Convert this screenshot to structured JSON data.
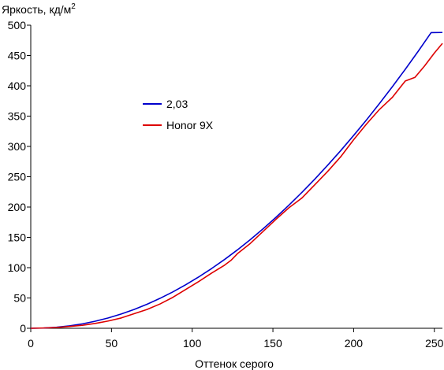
{
  "chart_data": {
    "type": "line",
    "ylabel": "Яркость, кд/м",
    "ylabel_sup": "2",
    "xlabel": "Оттенок серого",
    "xlim": [
      0,
      255
    ],
    "ylim": [
      0,
      500
    ],
    "xticks": [
      0,
      50,
      100,
      150,
      200,
      250
    ],
    "yticks": [
      0,
      50,
      100,
      150,
      200,
      250,
      300,
      350,
      400,
      450,
      500
    ],
    "grid": false,
    "legend_position": "center-left",
    "series": [
      {
        "name": "2,03",
        "color": "#0000cc",
        "x": [
          0,
          8,
          16,
          24,
          32,
          40,
          48,
          56,
          64,
          72,
          80,
          88,
          96,
          104,
          112,
          120,
          128,
          136,
          144,
          152,
          160,
          168,
          176,
          184,
          192,
          200,
          208,
          216,
          224,
          232,
          240,
          248,
          255
        ],
        "y": [
          0,
          0.4,
          1.7,
          4,
          7.3,
          11.7,
          17,
          23.5,
          31,
          39.6,
          49.3,
          60,
          71.8,
          84.6,
          98.5,
          113.4,
          129.3,
          146.3,
          164.3,
          183.3,
          203.3,
          224.3,
          246.2,
          269.2,
          293.1,
          318.1,
          343.9,
          370.8,
          398.6,
          427.3,
          457,
          487.7,
          488
        ]
      },
      {
        "name": "Honor 9X",
        "color": "#dd0000",
        "x": [
          0,
          8,
          16,
          24,
          32,
          40,
          48,
          56,
          64,
          72,
          80,
          88,
          96,
          104,
          112,
          120,
          124,
          128,
          136,
          144,
          152,
          160,
          164,
          168,
          176,
          184,
          192,
          200,
          208,
          216,
          224,
          232,
          238,
          244,
          250,
          255
        ],
        "y": [
          0,
          0.5,
          1.2,
          3,
          5,
          8,
          12,
          17,
          24,
          31,
          40,
          51,
          64,
          77,
          91,
          104,
          112,
          123,
          140,
          160,
          180,
          199,
          207,
          215,
          237,
          259,
          283,
          311,
          337,
          361,
          381,
          408,
          414,
          433,
          454,
          470
        ]
      }
    ]
  }
}
